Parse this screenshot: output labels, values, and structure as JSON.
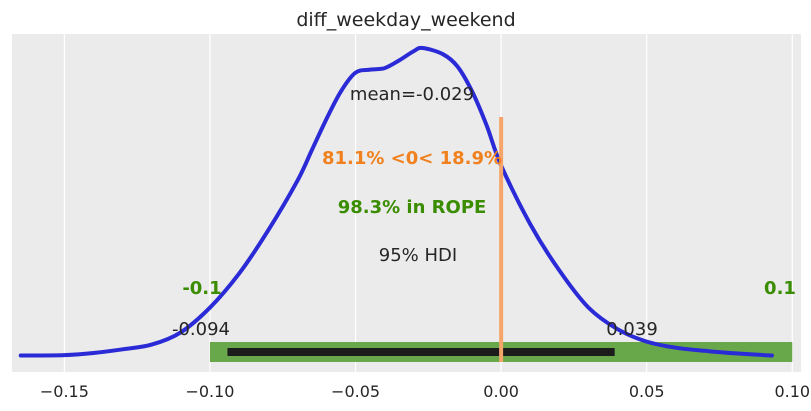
{
  "chart_data": {
    "type": "line",
    "title": "diff_weekday_weekend",
    "xlabel": "",
    "ylabel": "",
    "xlim": [
      -0.168,
      0.103
    ],
    "ylim": [
      0,
      1.0
    ],
    "x_ticks": [
      -0.15,
      -0.1,
      -0.05,
      0.0,
      0.05,
      0.1
    ],
    "x_tick_labels": [
      "−0.15",
      "−0.10",
      "−0.05",
      "0.00",
      "0.05",
      "0.10"
    ],
    "grid": true,
    "series": [
      {
        "color": "#2a2ad6",
        "x": [
          -0.165,
          -0.15,
          -0.14,
          -0.13,
          -0.12,
          -0.11,
          -0.1,
          -0.09,
          -0.08,
          -0.07,
          -0.065,
          -0.06,
          -0.055,
          -0.05,
          -0.045,
          -0.04,
          -0.035,
          -0.03,
          -0.027,
          -0.02,
          -0.015,
          -0.01,
          -0.005,
          0.0,
          0.01,
          0.02,
          0.03,
          0.04,
          0.05,
          0.06,
          0.07,
          0.08,
          0.093
        ],
        "y": [
          0.005,
          0.006,
          0.013,
          0.025,
          0.04,
          0.08,
          0.16,
          0.27,
          0.41,
          0.57,
          0.67,
          0.77,
          0.86,
          0.92,
          0.93,
          0.935,
          0.96,
          0.99,
          1.0,
          0.98,
          0.94,
          0.86,
          0.75,
          0.62,
          0.43,
          0.28,
          0.16,
          0.09,
          0.05,
          0.03,
          0.02,
          0.012,
          0.005
        ]
      }
    ],
    "mean_label": "mean=-0.029",
    "ref_value": 0.0,
    "ref_color": "#f5a56a",
    "ref_label": "81.1% <0< 18.9%",
    "ref_label_color": "#f0811e",
    "rope": {
      "low": -0.1,
      "high": 0.1,
      "low_label": "-0.1",
      "high_label": "0.1",
      "color": "#69a84a"
    },
    "rope_label": "98.3% in ROPE",
    "rope_label_color": "#3a8c00",
    "hdi": {
      "low": -0.094,
      "high": 0.039,
      "label": "95% HDI",
      "low_label": "-0.094",
      "high_label": "0.039",
      "color": "#1c1c1c"
    }
  }
}
